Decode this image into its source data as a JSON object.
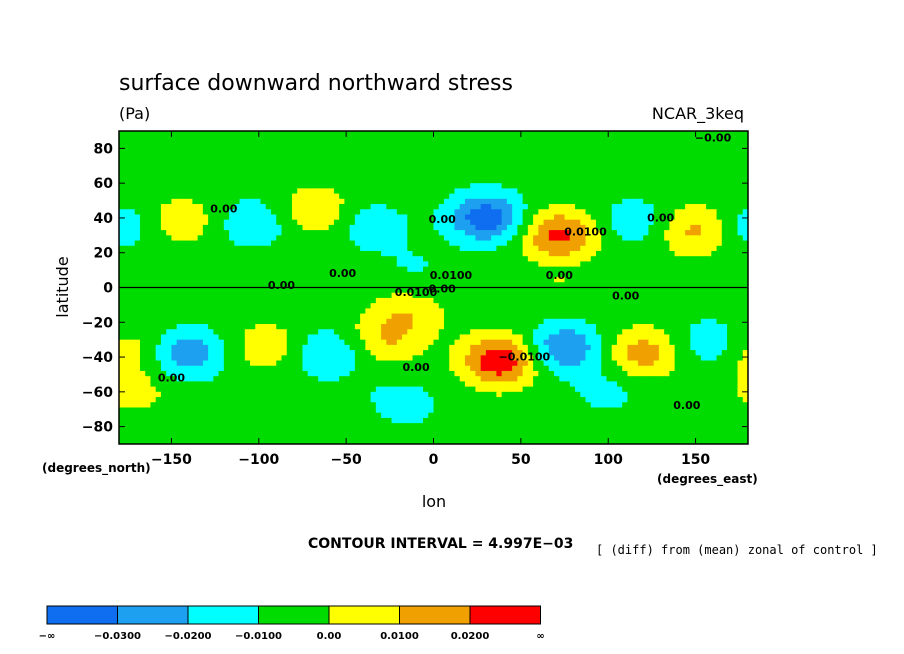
{
  "chart_data": {
    "type": "heatmap",
    "title": "surface downward northward stress",
    "units": "(Pa)",
    "dataset": "NCAR_3keq",
    "xlabel": "lon",
    "ylabel": "latitude",
    "x_unit_label": "(degrees_east)",
    "y_unit_label": "(degrees_north)",
    "xlim": [
      -180,
      180
    ],
    "ylim": [
      -90,
      90
    ],
    "xticks": [
      -150,
      -100,
      -50,
      0,
      50,
      100,
      150
    ],
    "yticks": [
      80,
      60,
      40,
      20,
      0,
      -20,
      -40,
      -60,
      -80
    ],
    "xtick_labels": [
      "−150",
      "−100",
      "−50",
      "0",
      "50",
      "100",
      "150"
    ],
    "ytick_labels": [
      "80",
      "60",
      "40",
      "20",
      "0",
      "−20",
      "−40",
      "−60",
      "−80"
    ],
    "contour_interval_text": "CONTOUR INTERVAL = 4.997E−03",
    "comparison_note": "[ (diff) from (mean) zonal of control ]",
    "background_value": -0.005,
    "features": [
      {
        "lon": -145,
        "lat": 38,
        "value": 0.012
      },
      {
        "lon": -178,
        "lat": 35,
        "value": -0.012
      },
      {
        "lon": -102,
        "lat": 37,
        "value": -0.014
      },
      {
        "lon": -68,
        "lat": 44,
        "value": 0.014
      },
      {
        "lon": -35,
        "lat": 35,
        "value": -0.012
      },
      {
        "lon": 30,
        "lat": 40,
        "value": -0.032
      },
      {
        "lon": 72,
        "lat": 30,
        "value": 0.028
      },
      {
        "lon": 115,
        "lat": 38,
        "value": -0.012
      },
      {
        "lon": 150,
        "lat": 33,
        "value": 0.018
      },
      {
        "lon": -10,
        "lat": 10,
        "value": -0.006
      },
      {
        "lon": -140,
        "lat": -38,
        "value": -0.022
      },
      {
        "lon": -178,
        "lat": -36,
        "value": 0.012
      },
      {
        "lon": -95,
        "lat": -34,
        "value": 0.012
      },
      {
        "lon": -60,
        "lat": -38,
        "value": -0.016
      },
      {
        "lon": -28,
        "lat": -30,
        "value": 0.014
      },
      {
        "lon": -15,
        "lat": -15,
        "value": 0.012
      },
      {
        "lon": 38,
        "lat": -42,
        "value": 0.034
      },
      {
        "lon": 75,
        "lat": -35,
        "value": -0.026
      },
      {
        "lon": 120,
        "lat": -38,
        "value": 0.02
      },
      {
        "lon": 160,
        "lat": -32,
        "value": -0.014
      },
      {
        "lon": -20,
        "lat": -68,
        "value": -0.012
      },
      {
        "lon": 100,
        "lat": -60,
        "value": -0.008
      },
      {
        "lon": -170,
        "lat": -60,
        "value": 0.008
      },
      {
        "lon": -40,
        "lat": -80,
        "value": 0.006
      },
      {
        "lon": 120,
        "lat": 80,
        "value": 0.004
      },
      {
        "lon": -40,
        "lat": 75,
        "value": 0.004
      }
    ],
    "contour_labels": [
      {
        "lon": -120,
        "lat": 43,
        "text": "0.00"
      },
      {
        "lon": -52,
        "lat": 6,
        "text": "0.00"
      },
      {
        "lon": -87,
        "lat": -1,
        "text": "0.00"
      },
      {
        "lon": 5,
        "lat": 37,
        "text": "0.00"
      },
      {
        "lon": 10,
        "lat": 5,
        "text": "0.0100"
      },
      {
        "lon": 5,
        "lat": -3,
        "text": "0.00"
      },
      {
        "lon": -10,
        "lat": -5,
        "text": "0.0100"
      },
      {
        "lon": 72,
        "lat": 5,
        "text": "0.00"
      },
      {
        "lon": 87,
        "lat": 30,
        "text": "0.0100"
      },
      {
        "lon": 110,
        "lat": -7,
        "text": "0.00"
      },
      {
        "lon": 130,
        "lat": 38,
        "text": "0.00"
      },
      {
        "lon": 160,
        "lat": 84,
        "text": "−0.00"
      },
      {
        "lon": -150,
        "lat": -54,
        "text": "0.00"
      },
      {
        "lon": -10,
        "lat": -48,
        "text": "0.00"
      },
      {
        "lon": 52,
        "lat": -42,
        "text": "−0.0100"
      },
      {
        "lon": 145,
        "lat": -70,
        "text": "0.00"
      }
    ],
    "colorbar": {
      "colors": [
        "#0f6ef0",
        "#1ea0f0",
        "#00ffff",
        "#00dc00",
        "#ffff00",
        "#f0a000",
        "#ff0000"
      ],
      "labels": [
        "−∞",
        "−0.0300",
        "−0.0200",
        "−0.0100",
        "0.00",
        "0.0100",
        "0.0200",
        "∞"
      ]
    }
  }
}
